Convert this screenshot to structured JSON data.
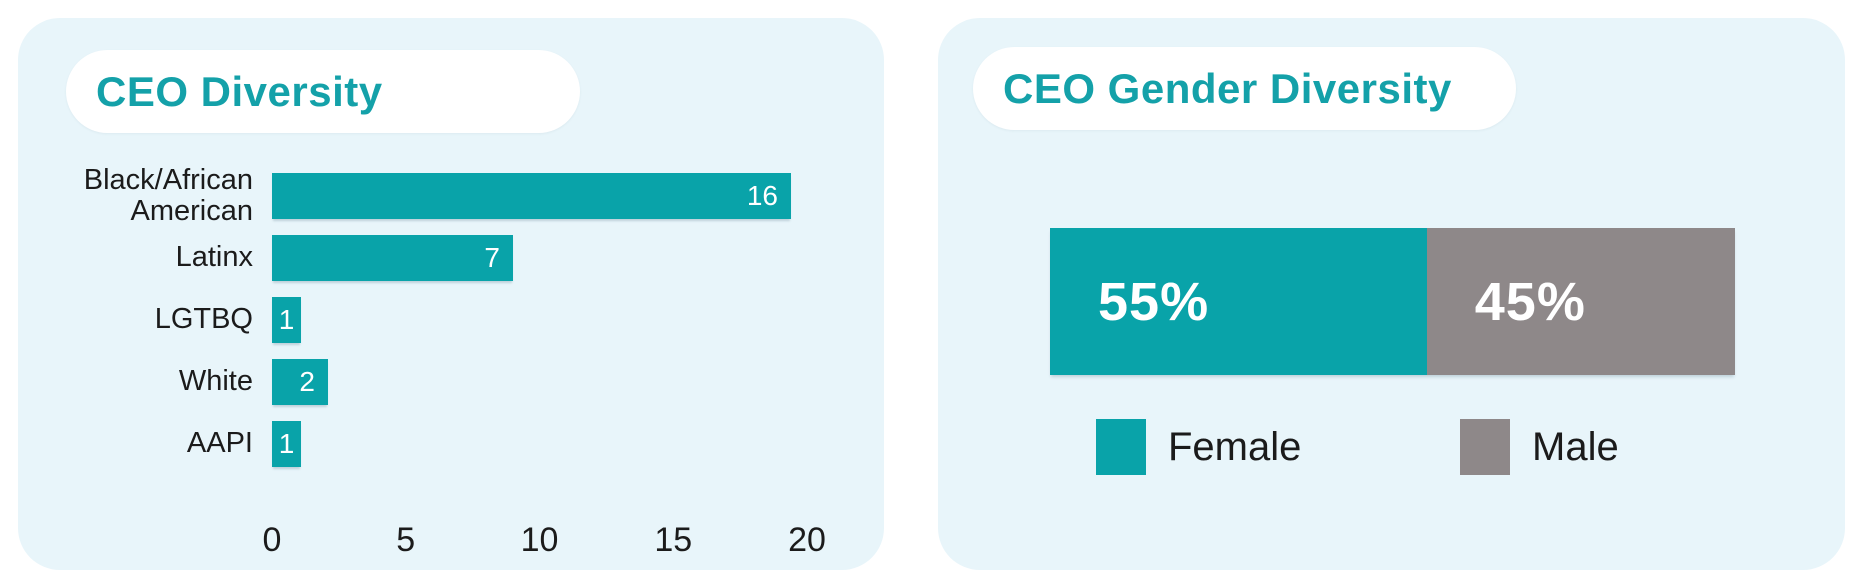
{
  "colors": {
    "page_bg": "#ffffff",
    "panel_bg": "#e8f5fa",
    "accent_teal": "#09a3a9",
    "title_teal": "#14a1a9",
    "gray": "#8e8889",
    "text_dark": "#1b1b1b",
    "value_text": "#ffffff"
  },
  "panels": {
    "left": {
      "title": "CEO Diversity"
    },
    "right": {
      "title": "CEO Gender Diversity"
    }
  },
  "chart_data": [
    {
      "type": "bar",
      "orientation": "horizontal",
      "title": "CEO Diversity",
      "categories": [
        "Black/African American",
        "Latinx",
        "LGTBQ",
        "White",
        "AAPI"
      ],
      "values": [
        16,
        7,
        1,
        2,
        1
      ],
      "xlabel": "",
      "ylabel": "",
      "xlim": [
        0,
        20
      ],
      "x_ticks": [
        0,
        5,
        10,
        15,
        20
      ],
      "grid": false,
      "bar_color": "#09a3a9",
      "value_label_color": "#ffffff",
      "value_label_position": "inside-end",
      "display_units": [
        19.4,
        9.0,
        1.1,
        2.1,
        1.1
      ]
    },
    {
      "type": "bar",
      "subtype": "stacked",
      "orientation": "horizontal",
      "title": "CEO Gender Diversity",
      "series": [
        {
          "name": "Female",
          "value_pct": 55,
          "label": "55%",
          "color": "#09a3a9"
        },
        {
          "name": "Male",
          "value_pct": 45,
          "label": "45%",
          "color": "#8e8889"
        }
      ],
      "legend_position": "bottom"
    }
  ]
}
